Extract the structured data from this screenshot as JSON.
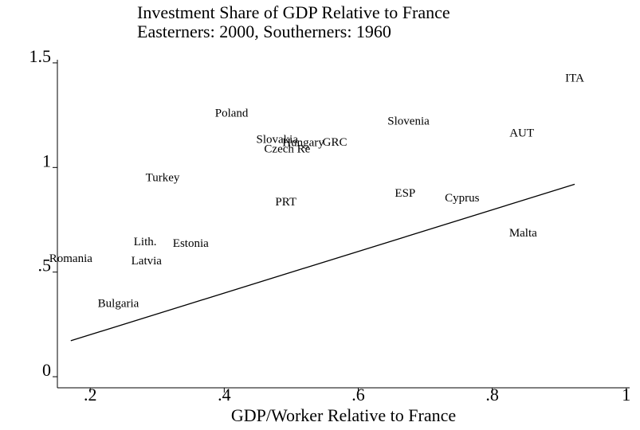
{
  "chart_data": {
    "type": "scatter",
    "title": "Investment Share of GDP Relative to France",
    "subtitle": "Easterners: 2000, Southerners: 1960",
    "x_label": "GDP/Worker Relative to France",
    "labels": [
      "ITA",
      "Poland",
      "Slovenia",
      "AUT",
      "Slovakia",
      "Hungary",
      "GRC",
      "Czech Re",
      "Turkey",
      "ESP",
      "Cyprus",
      "PRT",
      "Malta",
      "Lith.",
      "Estonia",
      "Romania",
      "Latvia",
      "Bulgaria"
    ],
    "x": [
      0.923,
      0.411,
      0.675,
      0.844,
      0.479,
      0.518,
      0.565,
      0.494,
      0.308,
      0.67,
      0.755,
      0.492,
      0.846,
      0.282,
      0.35,
      0.171,
      0.284,
      0.242
    ],
    "values": [
      1.424,
      1.256,
      1.218,
      1.16,
      1.13,
      1.115,
      1.118,
      1.084,
      0.947,
      0.874,
      0.851,
      0.832,
      0.683,
      0.641,
      0.634,
      0.561,
      0.55,
      0.347
    ],
    "fit": {
      "x": [
        0.171,
        0.923
      ],
      "values": [
        0.172,
        0.92
      ]
    },
    "color": "#000000",
    "xlim": [
      0.151,
      1.005
    ],
    "ylim": [
      -0.053,
      1.515
    ],
    "xticks": [
      {
        "value": 0.2,
        "label": ".2"
      },
      {
        "value": 0.4,
        "label": ".4"
      },
      {
        "value": 0.6,
        "label": ".6"
      },
      {
        "value": 0.8,
        "label": ".8"
      },
      1
    ],
    "yticks": [
      0,
      {
        "value": 0.5,
        "label": ".5"
      },
      1,
      1.5
    ]
  }
}
